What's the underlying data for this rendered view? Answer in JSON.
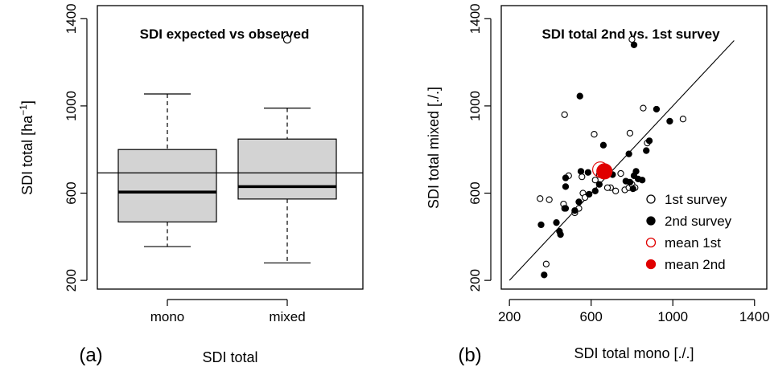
{
  "chart_data": [
    {
      "panel_label": "(a)",
      "type": "box",
      "title": "SDI expected vs observed",
      "ylabel": "SDI total [ha",
      "ylabel_exponent": "−1",
      "ylabel_close": "]",
      "xlabel": "SDI total",
      "ylim": [
        160,
        1460
      ],
      "yticks": [
        "200",
        "600",
        "1000",
        "1400"
      ],
      "reference_line": 693,
      "categories": [
        "mono",
        "mixed"
      ],
      "boxes": [
        {
          "name": "mono",
          "whisker_low": 355,
          "q1": 468,
          "median": 605,
          "q3": 800,
          "whisker_high": 1055,
          "outliers": []
        },
        {
          "name": "mixed",
          "whisker_low": 280,
          "q1": 573,
          "median": 630,
          "q3": 848,
          "whisker_high": 990,
          "outliers": [
            1305
          ]
        }
      ]
    },
    {
      "panel_label": "(b)",
      "type": "scatter",
      "title": "SDI total 2nd vs. 1st survey",
      "xlabel": "SDI total mono [./.]",
      "ylabel": "SDI total mixed [./.]",
      "xlim": [
        160,
        1460
      ],
      "ylim": [
        160,
        1460
      ],
      "xticks": [
        "200",
        "600",
        "1000",
        "1400"
      ],
      "yticks": [
        "200",
        "600",
        "1000",
        "1400"
      ],
      "reference_line": "1:1",
      "legend_position": "bottom-right",
      "legend": [
        "1st survey",
        "2nd survey",
        "mean 1st",
        "mean 2nd"
      ],
      "series": [
        {
          "name": "1st survey",
          "style": "open-black",
          "points": [
            [
              800,
              1305
            ],
            [
              470,
              960
            ],
            [
              615,
              870
            ],
            [
              855,
              990
            ],
            [
              790,
              875
            ],
            [
              1050,
              940
            ],
            [
              875,
              830
            ],
            [
              350,
              575
            ],
            [
              395,
              570
            ],
            [
              380,
              275
            ],
            [
              465,
              550
            ],
            [
              470,
              530
            ],
            [
              520,
              510
            ],
            [
              540,
              530
            ],
            [
              560,
              600
            ],
            [
              570,
              580
            ],
            [
              555,
              675
            ],
            [
              490,
              680
            ],
            [
              620,
              660
            ],
            [
              640,
              685
            ],
            [
              695,
              625
            ],
            [
              720,
              610
            ],
            [
              745,
              690
            ],
            [
              765,
              615
            ],
            [
              785,
              625
            ],
            [
              800,
              640
            ],
            [
              815,
              625
            ],
            [
              680,
              625
            ]
          ]
        },
        {
          "name": "2nd survey",
          "style": "filled-black",
          "points": [
            [
              810,
              1280
            ],
            [
              545,
              1045
            ],
            [
              920,
              985
            ],
            [
              985,
              930
            ],
            [
              885,
              840
            ],
            [
              870,
              795
            ],
            [
              785,
              780
            ],
            [
              660,
              820
            ],
            [
              585,
              695
            ],
            [
              550,
              700
            ],
            [
              475,
              670
            ],
            [
              475,
              630
            ],
            [
              475,
              530
            ],
            [
              520,
              520
            ],
            [
              430,
              465
            ],
            [
              450,
              410
            ],
            [
              445,
              425
            ],
            [
              355,
              455
            ],
            [
              370,
              225
            ],
            [
              540,
              560
            ],
            [
              590,
              595
            ],
            [
              620,
              610
            ],
            [
              640,
              640
            ],
            [
              705,
              685
            ],
            [
              770,
              655
            ],
            [
              790,
              650
            ],
            [
              805,
              620
            ],
            [
              810,
              680
            ],
            [
              820,
              700
            ],
            [
              830,
              665
            ],
            [
              850,
              660
            ]
          ]
        },
        {
          "name": "mean 1st",
          "style": "open-red",
          "points": [
            [
              645,
              708
            ]
          ]
        },
        {
          "name": "mean 2nd",
          "style": "filled-red",
          "points": [
            [
              665,
              700
            ]
          ]
        }
      ]
    }
  ]
}
